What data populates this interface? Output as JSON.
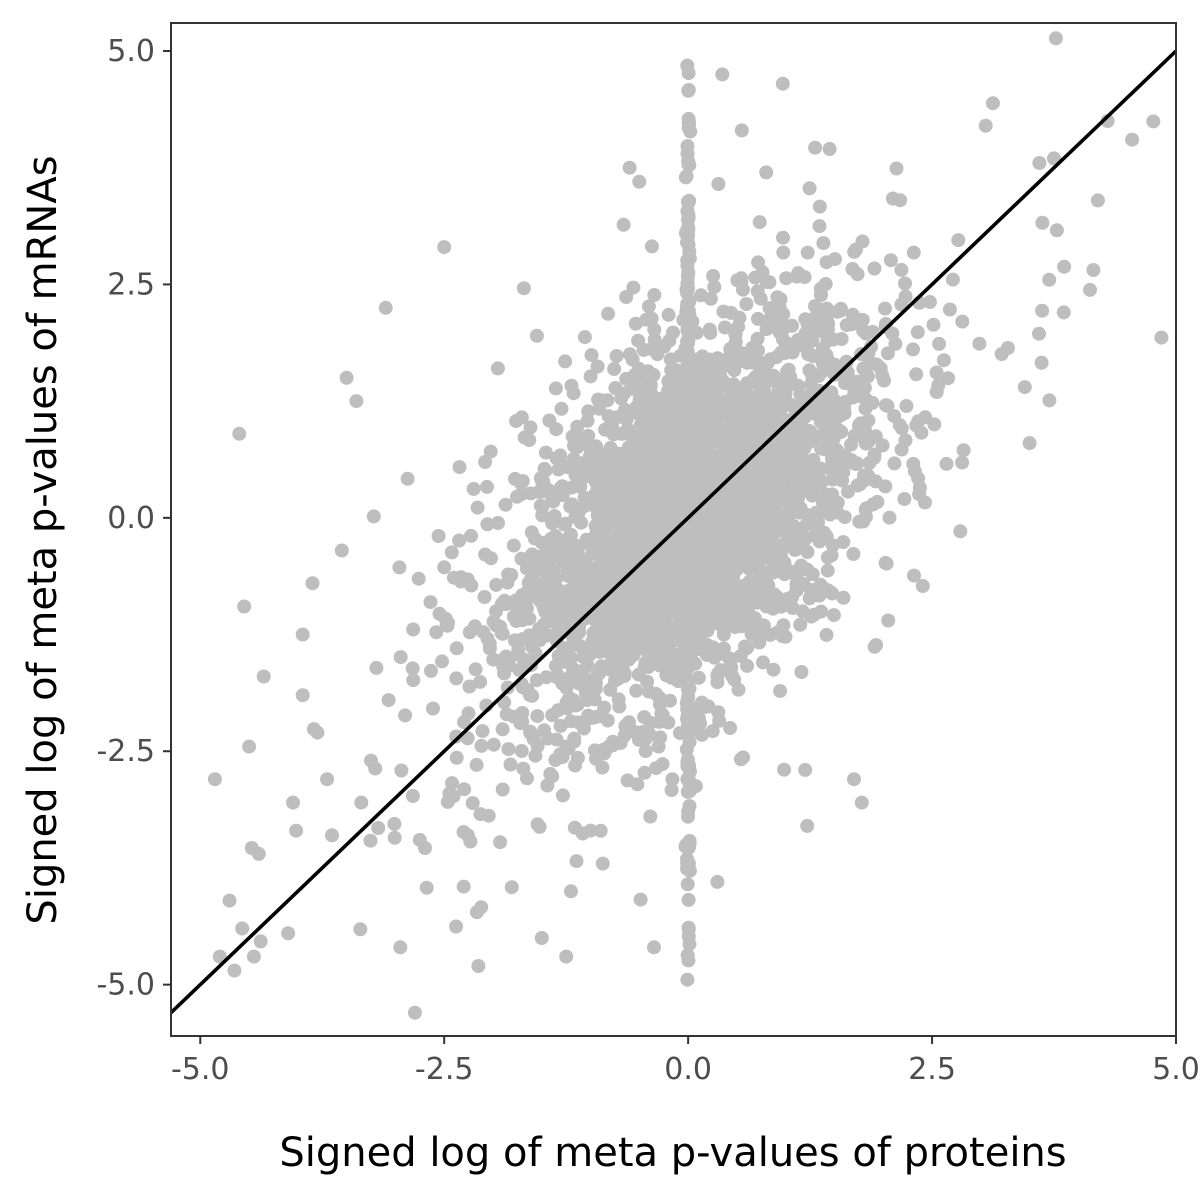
{
  "chart_data": {
    "type": "scatter",
    "xlabel": "Signed log of meta p-values of proteins",
    "ylabel": "Signed log of meta p-values of mRNAs",
    "xlim": [
      -5.3,
      5.0
    ],
    "ylim": [
      -5.55,
      5.3
    ],
    "x_ticks": [
      -5.0,
      -2.5,
      0.0,
      2.5,
      5.0
    ],
    "x_tick_labels": [
      "-5.0",
      "-2.5",
      "0.0",
      "2.5",
      "5.0"
    ],
    "y_ticks": [
      -5.0,
      -2.5,
      0.0,
      2.5,
      5.0
    ],
    "y_tick_labels": [
      "-5.0",
      "-2.5",
      "0.0",
      "2.5",
      "5.0"
    ],
    "grid": false,
    "legend": "none",
    "point_color": "#bebebe",
    "line_color": "#000000",
    "reference_line": {
      "slope": 1.0,
      "intercept": 0.0
    },
    "points": [
      [
        -4.8,
        -4.7
      ],
      [
        -4.85,
        -2.8
      ],
      [
        -4.7,
        -4.1
      ],
      [
        -4.65,
        -4.85
      ],
      [
        -4.55,
        -0.95
      ],
      [
        -4.6,
        0.9
      ],
      [
        -4.5,
        -2.45
      ],
      [
        -4.45,
        -4.7
      ],
      [
        -4.4,
        -3.6
      ],
      [
        -4.35,
        -1.7
      ],
      [
        -4.1,
        -4.45
      ],
      [
        -4.05,
        -3.05
      ],
      [
        -3.95,
        -1.25
      ],
      [
        -3.95,
        -1.9
      ],
      [
        -3.85,
        -0.7
      ],
      [
        -3.8,
        -2.3
      ],
      [
        -3.7,
        -2.8
      ],
      [
        -3.65,
        -3.4
      ],
      [
        -3.55,
        -0.35
      ],
      [
        -3.5,
        1.5
      ],
      [
        -3.4,
        1.25
      ],
      [
        -3.35,
        -3.05
      ],
      [
        -3.25,
        -2.6
      ],
      [
        -3.1,
        2.25
      ],
      [
        -2.95,
        -4.6
      ],
      [
        -2.8,
        -5.3
      ],
      [
        -2.75,
        -3.45
      ],
      [
        -2.5,
        2.9
      ],
      [
        -2.3,
        -3.95
      ],
      [
        -2.15,
        -4.8
      ],
      [
        -1.95,
        1.6
      ],
      [
        -1.55,
        1.95
      ],
      [
        -1.5,
        -4.5
      ],
      [
        -1.25,
        -4.7
      ],
      [
        -1.2,
        -4.0
      ],
      [
        -1.0,
        -3.35
      ],
      [
        -0.6,
        3.75
      ],
      [
        -0.5,
        3.6
      ],
      [
        -0.35,
        -4.6
      ],
      [
        0.35,
        4.75
      ],
      [
        0.3,
        -3.9
      ],
      [
        0.55,
        4.15
      ],
      [
        0.97,
        4.65
      ],
      [
        0.8,
        3.7
      ],
      [
        1.45,
        3.95
      ],
      [
        1.2,
        -2.7
      ],
      [
        1.7,
        -2.8
      ],
      [
        1.78,
        -3.05
      ],
      [
        1.22,
        -3.3
      ],
      [
        2.05,
        -1.1
      ],
      [
        3.05,
        4.2
      ],
      [
        3.6,
        3.8
      ],
      [
        3.75,
        3.85
      ],
      [
        4.2,
        3.4
      ],
      [
        4.3,
        4.25
      ],
      [
        4.55,
        4.05
      ],
      [
        3.7,
        2.55
      ],
      [
        3.85,
        2.2
      ],
      [
        3.45,
        1.4
      ],
      [
        3.5,
        0.8
      ]
    ],
    "cloud_spread_x": 0.85,
    "cloud_spread_y": 0.95,
    "vertical_band_x": 0.0
  }
}
